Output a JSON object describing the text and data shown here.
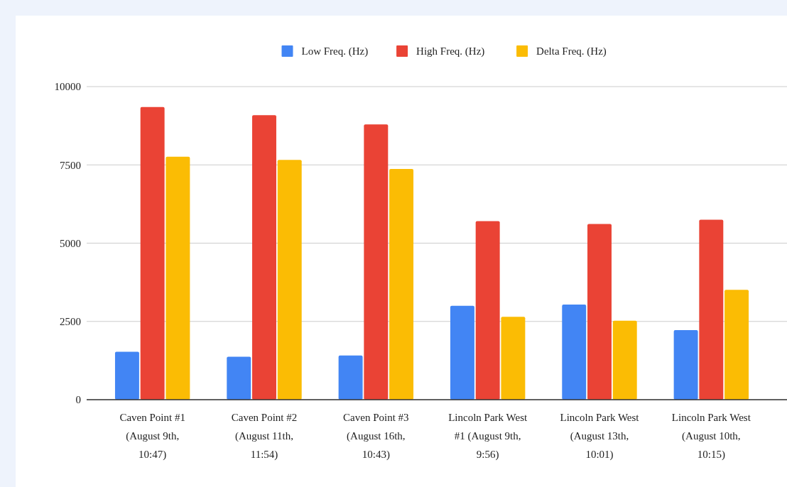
{
  "chart_data": {
    "type": "bar",
    "categories": [
      "Caven Point #1 (August 9th, 10:47)",
      "Caven Point #2 (August 11th, 11:54)",
      "Caven Point #3 (August 16th, 10:43)",
      "Lincoln Park West #1 (August 9th, 9:56)",
      "Lincoln Park West (August 13th, 10:01)",
      "Lincoln Park West (August 10th, 10:15)"
    ],
    "series": [
      {
        "name": "Low Freq. (Hz)",
        "color": "#4285f4",
        "values": [
          1530,
          1370,
          1410,
          3000,
          3040,
          2220
        ]
      },
      {
        "name": "High Freq. (Hz)",
        "color": "#ea4335",
        "values": [
          9350,
          9085,
          8790,
          5705,
          5615,
          5750
        ]
      },
      {
        "name": "Delta Freq. (Hz)",
        "color": "#fbbc04",
        "values": [
          7760,
          7660,
          7370,
          2650,
          2520,
          3510
        ]
      }
    ],
    "ylim": [
      0,
      10000
    ],
    "yticks": [
      0,
      2500,
      5000,
      7500,
      10000
    ],
    "grid": "y",
    "legend": "top"
  }
}
